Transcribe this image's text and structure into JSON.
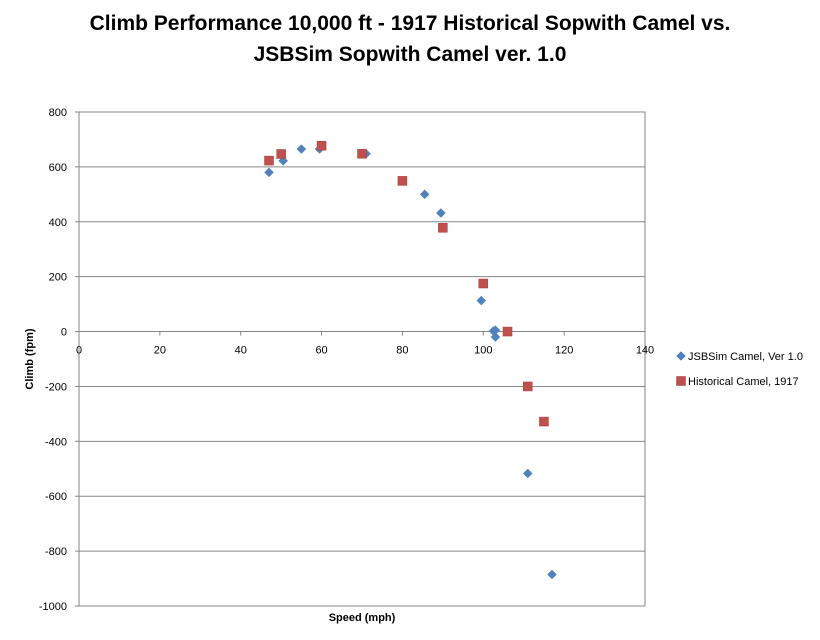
{
  "chart_data": {
    "type": "scatter",
    "title_line1": "Climb Performance 10,000 ft - 1917 Historical Sopwith Camel vs.",
    "title_line2": "JSBSim Sopwith Camel ver. 1.0",
    "xlabel": "Speed (mph)",
    "ylabel": "Climb (fpm)",
    "xlim": [
      0,
      140
    ],
    "ylim": [
      -1000,
      800
    ],
    "x_ticks": [
      0,
      20,
      40,
      60,
      80,
      100,
      120,
      140
    ],
    "y_ticks": [
      800,
      600,
      400,
      200,
      0,
      -200,
      -400,
      -600,
      -800,
      -1000
    ],
    "grid": "horizontal",
    "legend_position": "right",
    "series": [
      {
        "name": "JSBSim Camel, Ver 1.0",
        "marker": "diamond",
        "color": "#4F81BD",
        "points": [
          [
            47,
            580
          ],
          [
            50.5,
            622
          ],
          [
            55,
            665
          ],
          [
            59.5,
            665
          ],
          [
            71,
            648
          ],
          [
            85.5,
            500
          ],
          [
            89.5,
            432
          ],
          [
            99.5,
            113
          ],
          [
            102.5,
            2
          ],
          [
            103,
            5
          ],
          [
            103,
            -20
          ],
          [
            111,
            -517
          ],
          [
            117,
            -885
          ]
        ]
      },
      {
        "name": "Historical Camel, 1917",
        "marker": "square",
        "color": "#C0504D",
        "points": [
          [
            47,
            623
          ],
          [
            50,
            647
          ],
          [
            60,
            677
          ],
          [
            70,
            648
          ],
          [
            80,
            549
          ],
          [
            90,
            378
          ],
          [
            100,
            175
          ],
          [
            106,
            0
          ],
          [
            111,
            -200
          ],
          [
            115,
            -328
          ]
        ]
      }
    ]
  }
}
